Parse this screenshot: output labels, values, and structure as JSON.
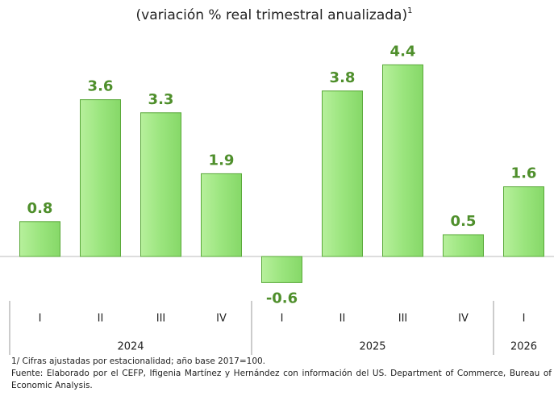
{
  "chart_data": {
    "type": "bar",
    "title": "(variación % real trimestral anualizada)",
    "title_superscript": "1",
    "categories": [
      "I",
      "II",
      "III",
      "IV",
      "I",
      "II",
      "III",
      "IV",
      "I"
    ],
    "groups": [
      "2024",
      "2025",
      "2026"
    ],
    "values": [
      0.8,
      3.6,
      3.3,
      1.9,
      -0.6,
      3.8,
      4.4,
      0.5,
      1.6
    ],
    "color": "#9be57e",
    "label_color": "#4f8f2c",
    "ylim": [
      -1,
      5
    ],
    "notes": [
      "1/ Cifras ajustadas por estacionalidad; año base 2017=100.",
      "Fuente: Elaborado por el CEFP, Ifigenia Martínez y Hernández con información del US. Department of Commerce, Bureau of Economic Analysis."
    ]
  }
}
